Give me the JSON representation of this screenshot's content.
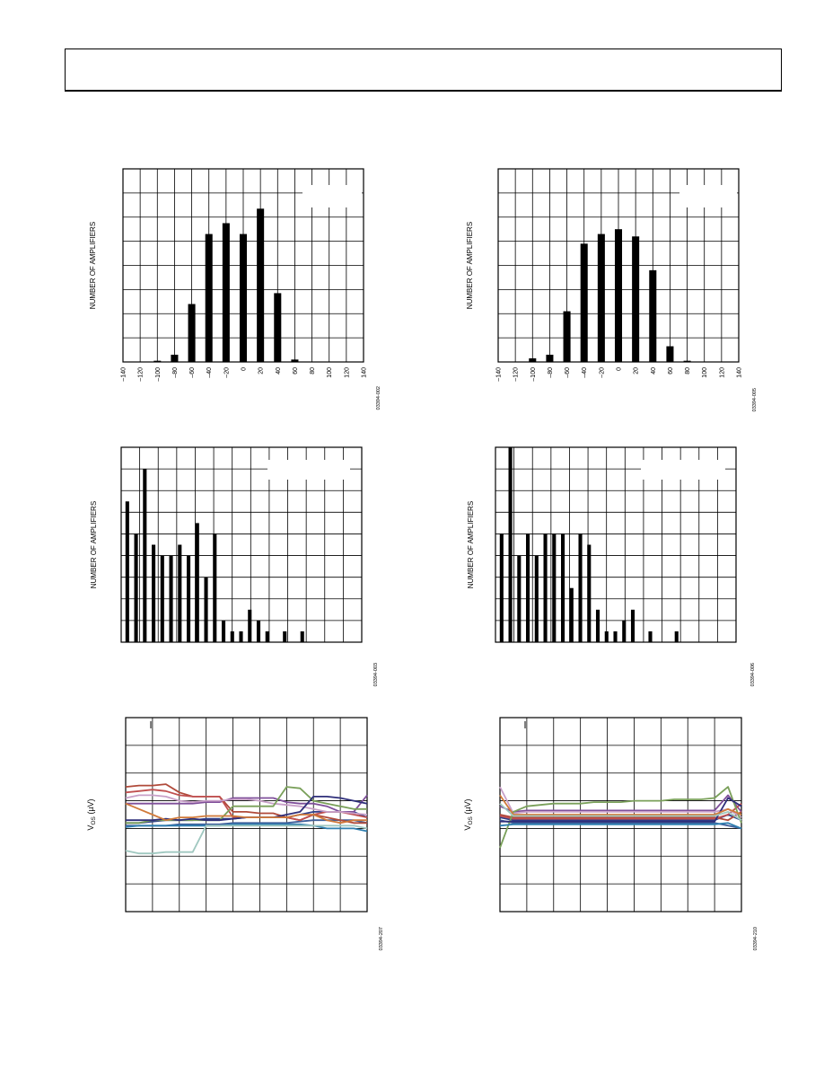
{
  "page": {
    "header_text": ""
  },
  "chart_data": [
    {
      "id": "hist-tl",
      "type": "bar",
      "title": "",
      "xlabel": "",
      "ylabel": "NUMBER OF AMPLIFIERS",
      "xlim": [
        -140,
        140
      ],
      "ylim": [
        0,
        8
      ],
      "grid": true,
      "legend": "top-right",
      "x_ticks": [
        "–140",
        "–120",
        "–100",
        "–80",
        "–60",
        "–40",
        "–20",
        "0",
        "20",
        "40",
        "60",
        "80",
        "100",
        "120",
        "140"
      ],
      "categories": [
        -100,
        -80,
        -60,
        -40,
        -20,
        0,
        20,
        40,
        60
      ],
      "values": [
        0.05,
        0.3,
        2.4,
        5.3,
        5.75,
        5.3,
        6.35,
        2.85,
        0.1
      ],
      "figure_id": "03394-002"
    },
    {
      "id": "hist-tr",
      "type": "bar",
      "title": "",
      "xlabel": "",
      "ylabel": "NUMBER OF AMPLIFIERS",
      "xlim": [
        -140,
        140
      ],
      "ylim": [
        0,
        8
      ],
      "grid": true,
      "legend": "top-right",
      "x_ticks": [
        "–140",
        "–120",
        "–100",
        "–80",
        "–60",
        "–40",
        "–20",
        "0",
        "20",
        "40",
        "60",
        "80",
        "100",
        "120",
        "140"
      ],
      "categories": [
        -100,
        -80,
        -60,
        -40,
        -20,
        0,
        20,
        40,
        60,
        80
      ],
      "values": [
        0.15,
        0.3,
        2.1,
        4.9,
        5.3,
        5.5,
        5.2,
        3.8,
        0.65,
        0.05
      ],
      "figure_id": "03394-005"
    },
    {
      "id": "hist-ml",
      "type": "bar",
      "title": "",
      "xlabel": "",
      "ylabel": "NUMBER OF AMPLIFIERS",
      "ylim": [
        0,
        9
      ],
      "grid": true,
      "legend": "top-right",
      "x_ticks": [],
      "categories": [
        0,
        1,
        2,
        3,
        4,
        5,
        6,
        7,
        8,
        9,
        10,
        11,
        12,
        13,
        14,
        15,
        16,
        17,
        18,
        19,
        20
      ],
      "values": [
        6.5,
        5,
        8,
        4.5,
        4,
        4,
        4.5,
        4,
        5.5,
        3,
        5,
        1,
        0.5,
        0.5,
        1.5,
        1,
        0.5,
        0,
        0.5,
        0,
        0.5
      ],
      "figure_id": "03394-003"
    },
    {
      "id": "hist-mr",
      "type": "bar",
      "title": "",
      "xlabel": "",
      "ylabel": "NUMBER OF AMPLIFIERS",
      "ylim": [
        0,
        9
      ],
      "grid": true,
      "legend": "top-right",
      "x_ticks": [],
      "categories": [
        0,
        1,
        2,
        3,
        4,
        5,
        6,
        7,
        8,
        9,
        10,
        11,
        12,
        13,
        14,
        15,
        16,
        17,
        18,
        19,
        20
      ],
      "values": [
        5,
        9,
        4,
        5,
        4,
        5,
        5,
        5,
        2.5,
        5,
        4.5,
        1.5,
        0.5,
        0.5,
        1,
        1.5,
        0,
        0.5,
        0,
        0,
        0.5
      ],
      "figure_id": "03394-006"
    },
    {
      "id": "drift-bl",
      "type": "line",
      "title": "",
      "xlabel": "",
      "ylabel": "V",
      "ylabel_sub": "OS",
      "ylabel_unit": " (µV)",
      "xlim": [
        0,
        9
      ],
      "ylim": [
        0,
        7
      ],
      "grid": true,
      "figure_id": "03394-207",
      "x": [
        0,
        0.5,
        1,
        1.5,
        2,
        2.5,
        3,
        3.5,
        4,
        4.5,
        5,
        5.5,
        6,
        6.5,
        7,
        7.5,
        8,
        8.5,
        9
      ],
      "series": [
        {
          "color": "#3f5f9a",
          "values": [
            3.1,
            3.1,
            3.1,
            3.1,
            3.15,
            3.15,
            3.15,
            3.15,
            3.2,
            3.2,
            3.2,
            3.2,
            3.2,
            3.25,
            3.3,
            3.3,
            3.3,
            3.3,
            3.2
          ]
        },
        {
          "color": "#2f3f8a",
          "values": [
            3.2,
            3.2,
            3.25,
            3.3,
            3.3,
            3.3,
            3.35,
            3.35,
            3.35,
            3.4,
            3.4,
            3.4,
            3.4,
            3.5,
            3.6,
            3.6,
            3.6,
            3.6,
            3.4
          ]
        },
        {
          "color": "#7f4f9a",
          "values": [
            3.9,
            3.9,
            3.9,
            3.9,
            3.9,
            3.9,
            3.95,
            3.95,
            4.1,
            4.1,
            4.1,
            4.1,
            3.95,
            3.9,
            3.9,
            3.8,
            3.6,
            3.6,
            4.2
          ]
        },
        {
          "color": "#b04a3a",
          "values": [
            4.5,
            4.55,
            4.55,
            4.6,
            4.3,
            4.15,
            4.15,
            4.15,
            3.6,
            3.6,
            3.55,
            3.55,
            3.4,
            3.3,
            3.5,
            3.4,
            3.3,
            3.2,
            3.2
          ]
        },
        {
          "color": "#c05050",
          "values": [
            4.3,
            4.35,
            4.4,
            4.35,
            4.2,
            4.15,
            4.15,
            4.15,
            3.4,
            3.4,
            3.4,
            3.4,
            3.4,
            3.3,
            3.5,
            3.6,
            3.6,
            3.5,
            3.4
          ]
        },
        {
          "color": "#c8a0c8",
          "values": [
            4.1,
            4.2,
            4.2,
            4.15,
            4.0,
            3.95,
            4.0,
            4.0,
            4.05,
            4.05,
            4.0,
            3.9,
            3.85,
            3.8,
            3.7,
            3.6,
            3.6,
            3.55,
            3.5
          ]
        },
        {
          "color": "#7aa05a",
          "values": [
            3.2,
            3.2,
            3.3,
            3.3,
            3.3,
            3.3,
            3.3,
            3.3,
            3.8,
            3.8,
            3.8,
            3.8,
            4.5,
            4.45,
            4.0,
            3.9,
            3.8,
            3.7,
            3.7
          ]
        },
        {
          "color": "#2f2f7a",
          "values": [
            3.3,
            3.3,
            3.3,
            3.35,
            3.3,
            3.35,
            3.3,
            3.3,
            3.35,
            3.4,
            3.4,
            3.4,
            3.5,
            3.6,
            4.15,
            4.15,
            4.1,
            4.0,
            3.9
          ]
        },
        {
          "color": "#d07a3a",
          "values": [
            3.9,
            3.7,
            3.5,
            3.3,
            3.4,
            3.4,
            3.45,
            3.45,
            3.45,
            3.4,
            3.4,
            3.4,
            3.4,
            3.5,
            3.5,
            3.3,
            3.2,
            3.3,
            3.3
          ]
        },
        {
          "color": "#2f7fb0",
          "values": [
            3.05,
            3.1,
            3.1,
            3.1,
            3.1,
            3.1,
            3.1,
            3.1,
            3.15,
            3.15,
            3.15,
            3.15,
            3.15,
            3.15,
            3.1,
            3.0,
            3.0,
            3.0,
            2.9
          ]
        },
        {
          "color": "#a0c8c0",
          "values": [
            2.2,
            2.1,
            2.1,
            2.15,
            2.15,
            2.15,
            3.1,
            3.1,
            3.1,
            3.1,
            3.1,
            3.1,
            3.1,
            3.1,
            3.1,
            3.1,
            3.1,
            3.1,
            3.0
          ]
        }
      ]
    },
    {
      "id": "drift-br",
      "type": "line",
      "title": "",
      "xlabel": "",
      "ylabel": "V",
      "ylabel_sub": "OS",
      "ylabel_unit": " (µV)",
      "xlim": [
        0,
        9
      ],
      "ylim": [
        0,
        7
      ],
      "grid": true,
      "figure_id": "03394-210",
      "x": [
        0,
        0.5,
        1,
        1.5,
        2,
        2.5,
        3,
        3.5,
        4,
        4.5,
        5,
        5.5,
        6,
        6.5,
        7,
        7.5,
        8,
        8.5,
        9
      ],
      "series": [
        {
          "color": "#3f5f9a",
          "values": [
            3.3,
            3.2,
            3.2,
            3.2,
            3.2,
            3.2,
            3.2,
            3.2,
            3.2,
            3.2,
            3.2,
            3.2,
            3.2,
            3.2,
            3.2,
            3.2,
            3.2,
            3.1,
            3.0
          ]
        },
        {
          "color": "#2f3f8a",
          "values": [
            3.4,
            3.3,
            3.3,
            3.3,
            3.3,
            3.3,
            3.3,
            3.3,
            3.3,
            3.3,
            3.3,
            3.3,
            3.3,
            3.3,
            3.3,
            3.3,
            3.3,
            3.5,
            3.3
          ]
        },
        {
          "color": "#7f4f9a",
          "values": [
            3.8,
            3.6,
            3.65,
            3.65,
            3.65,
            3.65,
            3.65,
            3.65,
            3.65,
            3.65,
            3.65,
            3.65,
            3.65,
            3.65,
            3.65,
            3.65,
            3.65,
            4.2,
            3.6
          ]
        },
        {
          "color": "#b04a3a",
          "values": [
            3.5,
            3.4,
            3.4,
            3.4,
            3.4,
            3.4,
            3.4,
            3.4,
            3.4,
            3.4,
            3.4,
            3.4,
            3.4,
            3.4,
            3.4,
            3.4,
            3.4,
            3.3,
            3.6
          ]
        },
        {
          "color": "#c05050",
          "values": [
            3.45,
            3.35,
            3.35,
            3.35,
            3.35,
            3.35,
            3.35,
            3.35,
            3.35,
            3.35,
            3.35,
            3.35,
            3.35,
            3.35,
            3.35,
            3.35,
            3.35,
            3.5,
            3.9
          ]
        },
        {
          "color": "#c8a0c8",
          "values": [
            4.5,
            3.55,
            3.6,
            3.6,
            3.6,
            3.6,
            3.6,
            3.6,
            3.6,
            3.6,
            3.6,
            3.6,
            3.6,
            3.6,
            3.6,
            3.6,
            3.6,
            3.7,
            3.4
          ]
        },
        {
          "color": "#7aa05a",
          "values": [
            2.3,
            3.6,
            3.8,
            3.85,
            3.9,
            3.9,
            3.9,
            3.95,
            3.95,
            3.95,
            4.0,
            4.0,
            4.0,
            4.05,
            4.05,
            4.05,
            4.1,
            4.5,
            3.2
          ]
        },
        {
          "color": "#2f2f7a",
          "values": [
            3.25,
            3.25,
            3.25,
            3.25,
            3.25,
            3.25,
            3.25,
            3.25,
            3.25,
            3.25,
            3.25,
            3.25,
            3.25,
            3.25,
            3.25,
            3.25,
            3.25,
            4.1,
            3.8
          ]
        },
        {
          "color": "#d07a3a",
          "values": [
            4.2,
            3.5,
            3.5,
            3.5,
            3.5,
            3.5,
            3.5,
            3.5,
            3.5,
            3.5,
            3.5,
            3.5,
            3.5,
            3.5,
            3.5,
            3.5,
            3.5,
            3.7,
            3.5
          ]
        },
        {
          "color": "#2f7fb0",
          "values": [
            3.1,
            3.15,
            3.15,
            3.15,
            3.15,
            3.15,
            3.15,
            3.15,
            3.15,
            3.15,
            3.15,
            3.15,
            3.15,
            3.15,
            3.15,
            3.15,
            3.15,
            3.2,
            3.0
          ]
        },
        {
          "color": "#a0c8c0",
          "values": [
            3.9,
            3.45,
            3.45,
            3.45,
            3.45,
            3.45,
            3.45,
            3.45,
            3.45,
            3.45,
            3.45,
            3.45,
            3.45,
            3.45,
            3.45,
            3.45,
            3.45,
            3.6,
            3.3
          ]
        }
      ]
    }
  ]
}
